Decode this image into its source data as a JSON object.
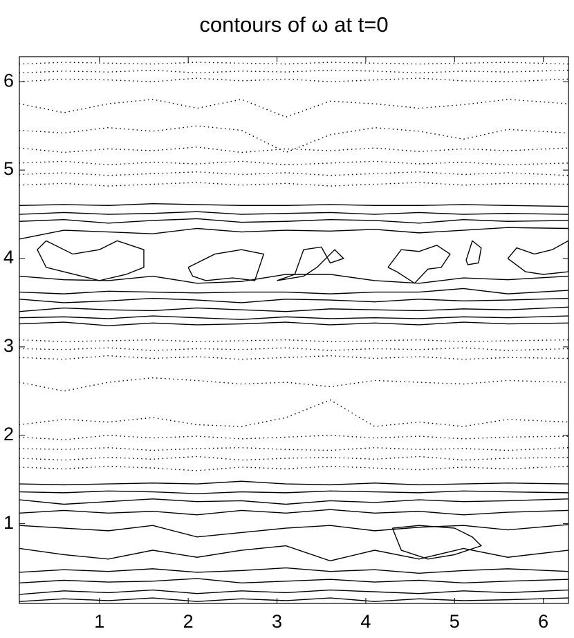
{
  "chart_data": {
    "type": "contour",
    "title": "contours of ω at t=0",
    "xlim": [
      0.098,
      6.283
    ],
    "ylim": [
      0.098,
      6.283
    ],
    "xticks": [
      1,
      2,
      3,
      4,
      5,
      6
    ],
    "yticks": [
      1,
      2,
      3,
      4,
      5,
      6
    ],
    "color": "#000000",
    "x": [
      0.1,
      0.6,
      1.1,
      1.6,
      2.1,
      2.6,
      3.1,
      3.6,
      4.1,
      4.6,
      5.1,
      5.6,
      6.28
    ],
    "contours": [
      {
        "style": "solid",
        "y": [
          4.6,
          4.61,
          4.6,
          4.62,
          4.61,
          4.6,
          4.6,
          4.61,
          4.6,
          4.6,
          4.61,
          4.6,
          4.59
        ]
      },
      {
        "style": "solid",
        "y": [
          4.5,
          4.52,
          4.5,
          4.51,
          4.53,
          4.5,
          4.51,
          4.52,
          4.5,
          4.52,
          4.5,
          4.51,
          4.5
        ]
      },
      {
        "style": "solid",
        "y": [
          4.42,
          4.44,
          4.4,
          4.43,
          4.45,
          4.41,
          4.42,
          4.44,
          4.43,
          4.4,
          4.44,
          4.42,
          4.43
        ]
      },
      {
        "style": "solid",
        "y": [
          4.22,
          4.32,
          4.3,
          4.28,
          4.34,
          4.3,
          4.32,
          4.31,
          4.33,
          4.29,
          4.32,
          4.35,
          4.34
        ]
      },
      {
        "style": "solid",
        "y": [
          3.8,
          3.76,
          3.75,
          3.8,
          3.72,
          3.74,
          3.82,
          3.82,
          3.75,
          3.72,
          3.78,
          3.76,
          3.8
        ]
      },
      {
        "style": "solid",
        "y": [
          3.62,
          3.6,
          3.63,
          3.62,
          3.61,
          3.62,
          3.62,
          3.6,
          3.62,
          3.62,
          3.66,
          3.6,
          3.64
        ]
      },
      {
        "style": "solid",
        "y": [
          3.54,
          3.5,
          3.52,
          3.55,
          3.53,
          3.5,
          3.54,
          3.53,
          3.51,
          3.54,
          3.52,
          3.53,
          3.55
        ]
      },
      {
        "style": "solid",
        "y": [
          3.4,
          3.44,
          3.42,
          3.41,
          3.44,
          3.42,
          3.4,
          3.43,
          3.42,
          3.41,
          3.43,
          3.42,
          3.45
        ]
      },
      {
        "style": "solid",
        "y": [
          3.33,
          3.34,
          3.32,
          3.35,
          3.33,
          3.31,
          3.34,
          3.32,
          3.33,
          3.32,
          3.34,
          3.33,
          3.35
        ]
      },
      {
        "style": "solid",
        "y": [
          3.26,
          3.28,
          3.24,
          3.27,
          3.25,
          3.26,
          3.28,
          3.25,
          3.27,
          3.25,
          3.28,
          3.26,
          3.27
        ]
      },
      {
        "style": "solid",
        "y": [
          1.45,
          1.44,
          1.45,
          1.46,
          1.45,
          1.48,
          1.45,
          1.44,
          1.46,
          1.44,
          1.45,
          1.46,
          1.45
        ]
      },
      {
        "style": "solid",
        "y": [
          1.36,
          1.35,
          1.37,
          1.36,
          1.34,
          1.36,
          1.35,
          1.37,
          1.36,
          1.35,
          1.37,
          1.36,
          1.35
        ]
      },
      {
        "style": "solid",
        "y": [
          1.27,
          1.22,
          1.25,
          1.28,
          1.25,
          1.26,
          1.22,
          1.26,
          1.24,
          1.27,
          1.25,
          1.26,
          1.28
        ]
      },
      {
        "style": "solid",
        "y": [
          1.12,
          1.15,
          1.12,
          1.14,
          1.1,
          1.15,
          1.12,
          1.16,
          1.12,
          1.14,
          1.1,
          1.13,
          1.15
        ]
      },
      {
        "style": "solid",
        "y": [
          0.98,
          0.95,
          0.92,
          0.98,
          0.85,
          0.9,
          0.95,
          0.98,
          0.92,
          0.96,
          0.98,
          0.93,
          0.99
        ]
      },
      {
        "style": "solid",
        "y": [
          0.72,
          0.65,
          0.6,
          0.7,
          0.62,
          0.7,
          0.75,
          0.58,
          0.7,
          0.6,
          0.72,
          0.62,
          0.7
        ]
      },
      {
        "style": "solid",
        "y": [
          0.45,
          0.48,
          0.46,
          0.49,
          0.45,
          0.47,
          0.5,
          0.46,
          0.48,
          0.44,
          0.47,
          0.49,
          0.46
        ]
      },
      {
        "style": "solid",
        "y": [
          0.33,
          0.36,
          0.34,
          0.35,
          0.38,
          0.33,
          0.35,
          0.37,
          0.34,
          0.36,
          0.33,
          0.35,
          0.37
        ]
      },
      {
        "style": "solid",
        "y": [
          0.2,
          0.24,
          0.22,
          0.25,
          0.21,
          0.24,
          0.22,
          0.25,
          0.23,
          0.21,
          0.24,
          0.22,
          0.25
        ]
      },
      {
        "style": "solid",
        "y": [
          0.12,
          0.15,
          0.13,
          0.16,
          0.12,
          0.15,
          0.13,
          0.16,
          0.12,
          0.15,
          0.13,
          0.14,
          0.16
        ]
      },
      {
        "style": "dotted",
        "y": [
          6.2,
          6.22,
          6.21,
          6.2,
          6.22,
          6.21,
          6.2,
          6.22,
          6.21,
          6.2,
          6.21,
          6.22,
          6.2
        ]
      },
      {
        "style": "dotted",
        "y": [
          6.1,
          6.12,
          6.11,
          6.13,
          6.1,
          6.12,
          6.11,
          6.13,
          6.12,
          6.1,
          6.12,
          6.11,
          6.13
        ]
      },
      {
        "style": "dotted",
        "y": [
          6.0,
          6.03,
          6.02,
          6.0,
          6.04,
          6.01,
          6.03,
          6.0,
          6.02,
          6.04,
          6.01,
          6.0,
          6.03
        ]
      },
      {
        "style": "dotted",
        "y": [
          5.75,
          5.65,
          5.75,
          5.8,
          5.7,
          5.8,
          5.6,
          5.78,
          5.75,
          5.7,
          5.74,
          5.8,
          5.75
        ]
      },
      {
        "style": "dotted",
        "y": [
          5.45,
          5.42,
          5.48,
          5.44,
          5.5,
          5.45,
          5.2,
          5.4,
          5.48,
          5.44,
          5.35,
          5.46,
          5.42
        ]
      },
      {
        "style": "dotted",
        "y": [
          5.25,
          5.2,
          5.24,
          5.22,
          5.26,
          5.2,
          5.24,
          5.22,
          5.25,
          5.21,
          5.24,
          5.22,
          5.25
        ]
      },
      {
        "style": "dotted",
        "y": [
          5.08,
          5.1,
          5.06,
          5.09,
          5.07,
          5.1,
          5.06,
          5.08,
          5.1,
          5.07,
          5.09,
          5.06,
          5.08
        ]
      },
      {
        "style": "dotted",
        "y": [
          4.95,
          4.97,
          4.94,
          4.96,
          4.98,
          4.95,
          4.97,
          4.94,
          4.96,
          4.98,
          4.95,
          4.97,
          4.94
        ]
      },
      {
        "style": "dotted",
        "y": [
          4.83,
          4.85,
          4.82,
          4.84,
          4.86,
          4.83,
          4.85,
          4.82,
          4.84,
          4.86,
          4.83,
          4.85,
          4.84
        ]
      },
      {
        "style": "dotted",
        "y": [
          3.08,
          3.06,
          3.07,
          3.08,
          3.06,
          3.07,
          3.08,
          3.06,
          3.07,
          3.08,
          3.06,
          3.07,
          3.08
        ]
      },
      {
        "style": "dotted",
        "y": [
          2.98,
          2.97,
          2.99,
          2.96,
          2.98,
          2.97,
          2.99,
          2.96,
          2.98,
          2.97,
          2.99,
          2.96,
          2.98
        ]
      },
      {
        "style": "dotted",
        "y": [
          2.88,
          2.86,
          2.9,
          2.87,
          2.89,
          2.86,
          2.88,
          2.9,
          2.87,
          2.89,
          2.86,
          2.88,
          2.87
        ]
      },
      {
        "style": "dotted",
        "y": [
          2.6,
          2.5,
          2.6,
          2.65,
          2.62,
          2.58,
          2.6,
          2.55,
          2.62,
          2.6,
          2.58,
          2.62,
          2.6
        ]
      },
      {
        "style": "dotted",
        "y": [
          2.12,
          2.18,
          2.15,
          2.2,
          2.12,
          2.1,
          2.2,
          2.4,
          2.1,
          2.15,
          2.1,
          2.18,
          2.15
        ]
      },
      {
        "style": "dotted",
        "y": [
          1.98,
          1.95,
          2.0,
          1.97,
          1.99,
          1.96,
          1.98,
          2.0,
          1.97,
          1.99,
          1.96,
          1.98,
          1.99
        ]
      },
      {
        "style": "dotted",
        "y": [
          1.85,
          1.84,
          1.86,
          1.83,
          1.85,
          1.86,
          1.84,
          1.83,
          1.86,
          1.84,
          1.85,
          1.83,
          1.86
        ]
      },
      {
        "style": "dotted",
        "y": [
          1.74,
          1.72,
          1.75,
          1.73,
          1.76,
          1.72,
          1.74,
          1.75,
          1.73,
          1.76,
          1.72,
          1.74,
          1.75
        ]
      },
      {
        "style": "dotted",
        "y": [
          1.64,
          1.62,
          1.65,
          1.63,
          1.6,
          1.64,
          1.62,
          1.65,
          1.63,
          1.61,
          1.64,
          1.62,
          1.65
        ]
      }
    ],
    "closed_contours": [
      {
        "style": "solid",
        "x": [
          0.4,
          0.7,
          1.0,
          1.2,
          1.5,
          1.5,
          1.3,
          1.0,
          0.6,
          0.4,
          0.3,
          0.4
        ],
        "y": [
          4.2,
          4.05,
          4.1,
          4.2,
          4.1,
          3.9,
          3.82,
          3.75,
          3.85,
          3.9,
          4.1,
          4.2
        ]
      },
      {
        "style": "solid",
        "x": [
          2.0,
          2.3,
          2.6,
          2.85,
          2.75,
          2.5,
          2.2,
          2.05,
          2.0
        ],
        "y": [
          3.9,
          4.05,
          4.1,
          4.05,
          3.75,
          3.78,
          3.75,
          3.8,
          3.9
        ]
      },
      {
        "style": "solid",
        "x": [
          3.0,
          3.2,
          3.3,
          3.5,
          3.6,
          3.75,
          3.65,
          3.45,
          3.3,
          3.0
        ],
        "y": [
          3.75,
          3.82,
          4.1,
          4.13,
          3.95,
          4.0,
          4.1,
          3.9,
          3.8,
          3.75
        ]
      },
      {
        "style": "solid",
        "x": [
          4.25,
          4.4,
          4.6,
          4.8,
          4.95,
          4.85,
          4.7,
          4.55,
          4.35,
          4.25
        ],
        "y": [
          3.9,
          4.1,
          4.08,
          4.15,
          4.05,
          3.9,
          3.88,
          3.72,
          3.85,
          3.9
        ]
      },
      {
        "style": "solid",
        "x": [
          5.13,
          5.2,
          5.3,
          5.27,
          5.15,
          5.13
        ],
        "y": [
          3.98,
          4.2,
          4.12,
          3.95,
          3.93,
          3.98
        ]
      },
      {
        "style": "solid",
        "x": [
          5.6,
          5.7,
          5.9,
          6.1,
          6.28,
          6.28,
          6.0,
          5.8,
          5.6
        ],
        "y": [
          4.0,
          4.12,
          4.05,
          4.1,
          4.2,
          3.85,
          3.82,
          3.85,
          4.0
        ]
      },
      {
        "style": "solid",
        "x": [
          4.3,
          4.6,
          5.0,
          5.2,
          5.3,
          5.0,
          4.7,
          4.4,
          4.3
        ],
        "y": [
          0.95,
          0.98,
          0.95,
          0.85,
          0.75,
          0.65,
          0.6,
          0.7,
          0.95
        ]
      }
    ]
  }
}
